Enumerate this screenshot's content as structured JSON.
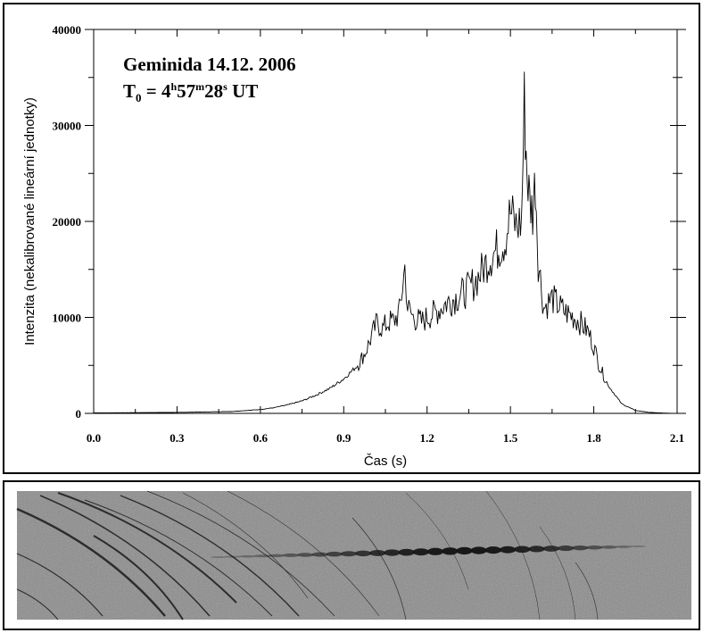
{
  "chart_data": {
    "type": "line",
    "title": "Geminida 14.12. 2006",
    "subtitle_parts": {
      "prefix": "T",
      "sub": "0",
      "eq": " = 4",
      "h": "h",
      "mid1": "57",
      "m": "m",
      "mid2": "28",
      "s": "s",
      "suffix": " UT"
    },
    "xlabel": "Čas (s)",
    "ylabel": "Intenzita (nekalibrované lineární jednotky)",
    "xlim": [
      0.0,
      2.1
    ],
    "ylim": [
      0,
      40000
    ],
    "x_ticks": [
      "0.0",
      "0.3",
      "0.6",
      "0.9",
      "1.2",
      "1.5",
      "1.8",
      "2.1"
    ],
    "y_ticks": [
      "0",
      "10000",
      "20000",
      "30000",
      "40000"
    ],
    "grid": false,
    "series": [
      {
        "x": [
          0.0,
          0.3,
          0.5,
          0.6,
          0.65,
          0.7,
          0.75,
          0.8,
          0.85,
          0.9,
          0.95,
          0.98,
          1.0,
          1.02,
          1.04,
          1.06,
          1.08,
          1.1,
          1.12,
          1.13,
          1.15,
          1.18,
          1.2,
          1.23,
          1.25,
          1.27,
          1.3,
          1.33,
          1.35,
          1.38,
          1.4,
          1.42,
          1.45,
          1.48,
          1.5,
          1.52,
          1.54,
          1.55,
          1.56,
          1.57,
          1.58,
          1.59,
          1.6,
          1.62,
          1.65,
          1.68,
          1.7,
          1.73,
          1.75,
          1.78,
          1.8,
          1.82,
          1.85,
          1.88,
          1.9,
          1.95,
          2.0,
          2.05,
          2.1
        ],
        "y": [
          50,
          100,
          200,
          400,
          600,
          900,
          1300,
          1900,
          2600,
          3600,
          5000,
          6500,
          8000,
          9500,
          8800,
          9500,
          9600,
          10500,
          15200,
          11000,
          10000,
          9500,
          10000,
          10500,
          11000,
          11500,
          12000,
          12500,
          13000,
          14000,
          15000,
          16000,
          17000,
          18000,
          21000,
          19500,
          20000,
          32200,
          25000,
          22000,
          21000,
          24500,
          16000,
          11000,
          12000,
          11000,
          10500,
          10000,
          9500,
          8500,
          7000,
          5000,
          3000,
          1800,
          1000,
          300,
          100,
          30,
          0
        ]
      }
    ]
  }
}
